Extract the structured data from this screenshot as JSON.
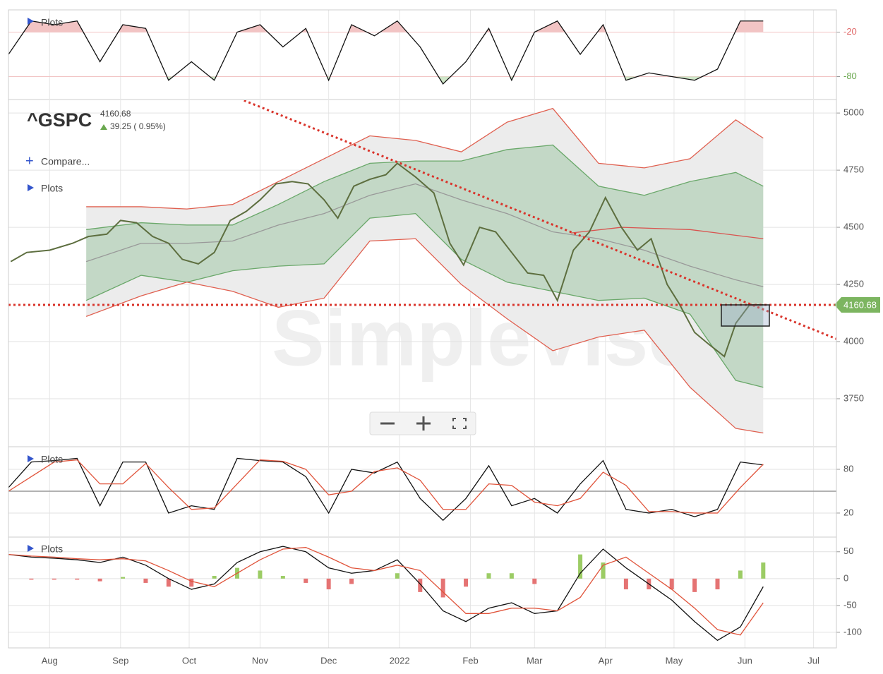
{
  "chart_data": [
    {
      "type": "line",
      "label": "Plots",
      "ylim": [
        -110,
        10
      ],
      "yticks": [
        -20,
        -80
      ],
      "ytick_colors": [
        "#e06666",
        "#6aa84f"
      ],
      "x": [
        -18,
        -8,
        2,
        12,
        22,
        32,
        42,
        52,
        62,
        72,
        82,
        92,
        102,
        112,
        122,
        132,
        142,
        152,
        162,
        172,
        182,
        192,
        202,
        212,
        222,
        232,
        242,
        252,
        262,
        272,
        282,
        292,
        302,
        312
      ],
      "series": [
        {
          "color": "#111111",
          "values": [
            -50,
            -5,
            -10,
            -5,
            -60,
            -10,
            -15,
            -85,
            -60,
            -85,
            -20,
            -10,
            -40,
            -15,
            -85,
            -10,
            -25,
            -5,
            -40,
            -90,
            -60,
            -15,
            -85,
            -20,
            -5,
            -50,
            -10,
            -85,
            -75,
            -80,
            -85,
            -70,
            -5,
            -5
          ]
        }
      ]
    },
    {
      "type": "line",
      "symbol": "^GSPC",
      "change": "39.25 ( 0.95%)",
      "compare": "Compare...",
      "label": "Plots",
      "watermark": "SimpleVisor",
      "ylim": [
        3543,
        5056
      ],
      "yticks": [
        3750,
        4000,
        4250,
        4500,
        4750,
        5000
      ],
      "hline": 4160.68,
      "hline_color": "#d9342b",
      "trendline": {
        "x": [
          85,
          344
        ],
        "values": [
          5055,
          4012
        ]
      },
      "x": [
        16,
        40,
        60,
        80,
        100,
        120,
        140,
        160,
        180,
        200,
        220,
        240,
        260,
        280,
        300,
        312
      ],
      "series": [
        {
          "color": "#e06050",
          "values": [
            4590,
            4590,
            4580,
            4600,
            4700,
            4800,
            4900,
            4880,
            4830,
            4960,
            5020,
            4780,
            4760,
            4800,
            4970,
            4890
          ]
        },
        {
          "color": "#6aa86a",
          "values": [
            4490,
            4520,
            4510,
            4510,
            4600,
            4700,
            4780,
            4790,
            4790,
            4840,
            4860,
            4680,
            4640,
            4700,
            4740,
            4680
          ]
        },
        {
          "color": "#999999",
          "values": [
            4350,
            4430,
            4430,
            4440,
            4510,
            4560,
            4640,
            4690,
            4620,
            4560,
            4480,
            4450,
            4400,
            4330,
            4270,
            4240
          ]
        },
        {
          "color": "#6aa86a",
          "values": [
            4180,
            4290,
            4260,
            4310,
            4330,
            4340,
            4540,
            4560,
            4360,
            4260,
            4220,
            4180,
            4190,
            4120,
            3830,
            3800
          ]
        },
        {
          "color": "#e06050",
          "values": [
            4110,
            4200,
            4260,
            4220,
            4150,
            4190,
            4440,
            4450,
            4250,
            4100,
            3960,
            4020,
            4050,
            3800,
            3620,
            3600
          ]
        },
        {
          "color": "#d9534f",
          "x": [
            228,
            250,
            280,
            312
          ],
          "values": [
            4475,
            4500,
            4490,
            4450
          ]
        },
        {
          "color": "#5d6e3f",
          "x": [
            -17,
            -10,
            0,
            10,
            17,
            25,
            31,
            38,
            45,
            52,
            58,
            65,
            72,
            79,
            86,
            92,
            99,
            106,
            113,
            120,
            126,
            133,
            140,
            147,
            152,
            160,
            168,
            175,
            181,
            188,
            195,
            202,
            209,
            216,
            222,
            229,
            236,
            243,
            250,
            257,
            263,
            270,
            275,
            282,
            288,
            295,
            300,
            306,
            312
          ],
          "values": [
            4350,
            4390,
            4400,
            4430,
            4460,
            4470,
            4530,
            4520,
            4460,
            4430,
            4360,
            4340,
            4390,
            4530,
            4570,
            4620,
            4690,
            4700,
            4690,
            4620,
            4540,
            4680,
            4710,
            4730,
            4780,
            4720,
            4650,
            4430,
            4335,
            4500,
            4480,
            4390,
            4300,
            4290,
            4180,
            4400,
            4480,
            4630,
            4500,
            4400,
            4450,
            4250,
            4170,
            4040,
            3990,
            3935,
            4080,
            4160,
            4160.68
          ]
        }
      ]
    },
    {
      "type": "line",
      "label": "Plots",
      "ylim": [
        -12,
        110
      ],
      "yticks": [
        80,
        20
      ],
      "midline": 50,
      "x": [
        -18,
        -8,
        2,
        12,
        22,
        32,
        42,
        52,
        62,
        72,
        82,
        92,
        102,
        112,
        122,
        132,
        142,
        152,
        162,
        172,
        182,
        192,
        202,
        212,
        222,
        232,
        242,
        252,
        262,
        272,
        282,
        292,
        302,
        312
      ],
      "series": [
        {
          "color": "#111111",
          "values": [
            55,
            90,
            92,
            95,
            30,
            90,
            90,
            20,
            30,
            25,
            95,
            92,
            90,
            70,
            20,
            80,
            75,
            90,
            40,
            10,
            40,
            85,
            30,
            40,
            20,
            60,
            92,
            25,
            20,
            25,
            15,
            25,
            90,
            86
          ]
        },
        {
          "color": "#e0533a",
          "values": [
            50,
            70,
            90,
            93,
            60,
            60,
            88,
            55,
            25,
            27,
            60,
            93,
            91,
            80,
            45,
            50,
            77,
            82,
            65,
            25,
            25,
            60,
            58,
            35,
            30,
            40,
            76,
            58,
            22,
            22,
            20,
            20,
            55,
            87
          ]
        }
      ]
    },
    {
      "type": "line",
      "label": "Plots",
      "ylim": [
        -129,
        76
      ],
      "yticks": [
        50,
        0,
        -50,
        -100
      ],
      "xlim": [
        -18,
        344
      ],
      "xticks": [
        {
          "value": 0,
          "label": "Aug"
        },
        {
          "value": 31,
          "label": "Sep"
        },
        {
          "value": 61,
          "label": "Oct"
        },
        {
          "value": 92,
          "label": "Nov"
        },
        {
          "value": 122,
          "label": "Dec"
        },
        {
          "value": 153,
          "label": "2022"
        },
        {
          "value": 184,
          "label": "Feb"
        },
        {
          "value": 212,
          "label": "Mar"
        },
        {
          "value": 243,
          "label": "Apr"
        },
        {
          "value": 273,
          "label": "May"
        },
        {
          "value": 304,
          "label": "Jun"
        },
        {
          "value": 334,
          "label": "Jul"
        }
      ],
      "x": [
        -18,
        -8,
        2,
        12,
        22,
        32,
        42,
        52,
        62,
        72,
        82,
        92,
        102,
        112,
        122,
        132,
        142,
        152,
        162,
        172,
        182,
        192,
        202,
        212,
        222,
        232,
        242,
        252,
        262,
        272,
        282,
        292,
        302,
        312
      ],
      "histogram": [
        0,
        -2,
        -2,
        -2,
        -5,
        3,
        -8,
        -15,
        -15,
        5,
        20,
        15,
        5,
        -8,
        -20,
        -10,
        0,
        10,
        -25,
        -35,
        -15,
        10,
        10,
        -10,
        0,
        45,
        30,
        -20,
        -20,
        -20,
        -25,
        -20,
        15,
        30
      ],
      "histogram_colors": [
        "#9ccc65",
        "#e57373"
      ],
      "series": [
        {
          "color": "#111111",
          "values": [
            45,
            40,
            38,
            35,
            30,
            40,
            25,
            0,
            -20,
            -10,
            30,
            50,
            60,
            50,
            20,
            10,
            15,
            35,
            -10,
            -60,
            -80,
            -55,
            -45,
            -65,
            -60,
            10,
            55,
            20,
            -10,
            -40,
            -80,
            -115,
            -90,
            -15
          ]
        },
        {
          "color": "#e0533a",
          "values": [
            45,
            42,
            40,
            37,
            35,
            37,
            33,
            15,
            -5,
            -15,
            10,
            35,
            55,
            58,
            40,
            20,
            15,
            25,
            15,
            -25,
            -65,
            -65,
            -55,
            -55,
            -60,
            -35,
            25,
            40,
            10,
            -20,
            -55,
            -95,
            -105,
            -45
          ]
        }
      ]
    }
  ]
}
